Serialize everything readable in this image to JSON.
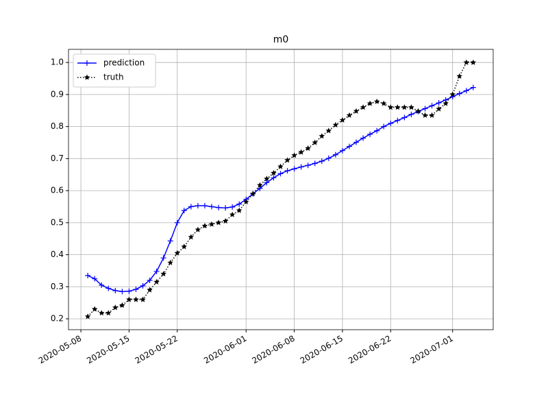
{
  "chart_data": {
    "type": "line",
    "title": "m0",
    "x": [
      "2020-05-09",
      "2020-05-10",
      "2020-05-11",
      "2020-05-12",
      "2020-05-13",
      "2020-05-14",
      "2020-05-15",
      "2020-05-16",
      "2020-05-17",
      "2020-05-18",
      "2020-05-19",
      "2020-05-20",
      "2020-05-21",
      "2020-05-22",
      "2020-05-23",
      "2020-05-24",
      "2020-05-25",
      "2020-05-26",
      "2020-05-27",
      "2020-05-28",
      "2020-05-29",
      "2020-05-30",
      "2020-05-31",
      "2020-06-01",
      "2020-06-02",
      "2020-06-03",
      "2020-06-04",
      "2020-06-05",
      "2020-06-06",
      "2020-06-07",
      "2020-06-08",
      "2020-06-09",
      "2020-06-10",
      "2020-06-11",
      "2020-06-12",
      "2020-06-13",
      "2020-06-14",
      "2020-06-15",
      "2020-06-16",
      "2020-06-17",
      "2020-06-18",
      "2020-06-19",
      "2020-06-20",
      "2020-06-21",
      "2020-06-22",
      "2020-06-23",
      "2020-06-24",
      "2020-06-25",
      "2020-06-26",
      "2020-06-27",
      "2020-06-28",
      "2020-06-29",
      "2020-06-30",
      "2020-07-01",
      "2020-07-02",
      "2020-07-03",
      "2020-07-04"
    ],
    "series": [
      {
        "name": "prediction",
        "color": "#0000ff",
        "marker": "plus",
        "linestyle": "solid",
        "values": [
          0.335,
          0.325,
          0.305,
          0.295,
          0.288,
          0.285,
          0.286,
          0.292,
          0.303,
          0.32,
          0.348,
          0.39,
          0.443,
          0.5,
          0.538,
          0.55,
          0.553,
          0.553,
          0.55,
          0.547,
          0.546,
          0.549,
          0.558,
          0.573,
          0.59,
          0.607,
          0.625,
          0.64,
          0.653,
          0.662,
          0.668,
          0.674,
          0.679,
          0.685,
          0.692,
          0.701,
          0.712,
          0.725,
          0.738,
          0.751,
          0.764,
          0.776,
          0.787,
          0.8,
          0.81,
          0.819,
          0.828,
          0.838,
          0.847,
          0.856,
          0.865,
          0.874,
          0.883,
          0.893,
          0.903,
          0.912,
          0.922
        ]
      },
      {
        "name": "truth",
        "color": "#000000",
        "marker": "star",
        "linestyle": "dotted",
        "values": [
          0.207,
          0.23,
          0.218,
          0.218,
          0.235,
          0.242,
          0.26,
          0.26,
          0.26,
          0.29,
          0.315,
          0.34,
          0.375,
          0.405,
          0.425,
          0.455,
          0.478,
          0.49,
          0.495,
          0.5,
          0.505,
          0.525,
          0.538,
          0.565,
          0.59,
          0.617,
          0.637,
          0.655,
          0.675,
          0.695,
          0.71,
          0.72,
          0.732,
          0.75,
          0.77,
          0.787,
          0.805,
          0.82,
          0.835,
          0.848,
          0.86,
          0.872,
          0.878,
          0.872,
          0.86,
          0.86,
          0.86,
          0.86,
          0.848,
          0.835,
          0.835,
          0.855,
          0.872,
          0.9,
          0.957,
          1.0,
          1.0
        ]
      }
    ],
    "xlim": [
      "2020-05-06",
      "2020-07-07"
    ],
    "xticks": [
      "2020-05-08",
      "2020-05-15",
      "2020-05-22",
      "2020-06-01",
      "2020-06-08",
      "2020-06-15",
      "2020-06-22",
      "2020-07-01"
    ],
    "ylim": [
      0.166,
      1.041
    ],
    "yticks": [
      0.2,
      0.3,
      0.4,
      0.5,
      0.6,
      0.7,
      0.8,
      0.9,
      {
        "value": 1.0,
        "label": "1.0"
      }
    ],
    "grid": true,
    "legend": "upper-left"
  }
}
